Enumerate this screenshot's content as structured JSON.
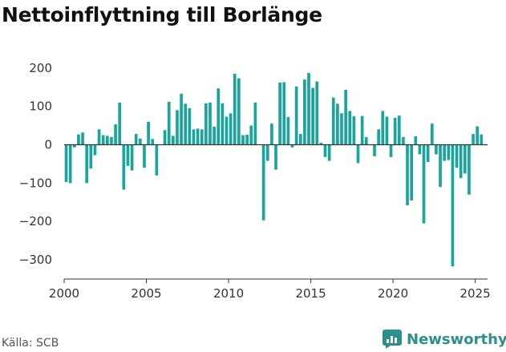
{
  "title": "Nettoinflyttning till Borlänge",
  "source": "Källa: SCB",
  "brand": "Newsworthy",
  "colors": {
    "bar": "#1aa59c",
    "brand": "#2c8f8a",
    "axis": "#333333"
  },
  "chart_data": {
    "type": "bar",
    "title": "Nettoinflyttning till Borlänge",
    "xlabel": "",
    "ylabel": "",
    "xlim": [
      2000,
      2025.75
    ],
    "ylim": [
      -350,
      210
    ],
    "x_ticks": [
      2000,
      2005,
      2010,
      2015,
      2020,
      2025
    ],
    "y_ticks": [
      200,
      100,
      0,
      -100,
      -200,
      -300
    ],
    "y_tick_labels": [
      "200",
      "100",
      "0",
      "−100",
      "−200",
      "−300"
    ],
    "grid": false,
    "legend": "none",
    "x": [
      2000.0,
      2000.25,
      2000.5,
      2000.75,
      2001.0,
      2001.25,
      2001.5,
      2001.75,
      2002.0,
      2002.25,
      2002.5,
      2002.75,
      2003.0,
      2003.25,
      2003.5,
      2003.75,
      2004.0,
      2004.25,
      2004.5,
      2004.75,
      2005.0,
      2005.25,
      2005.5,
      2005.75,
      2006.0,
      2006.25,
      2006.5,
      2006.75,
      2007.0,
      2007.25,
      2007.5,
      2007.75,
      2008.0,
      2008.25,
      2008.5,
      2008.75,
      2009.0,
      2009.25,
      2009.5,
      2009.75,
      2010.0,
      2010.25,
      2010.5,
      2010.75,
      2011.0,
      2011.25,
      2011.5,
      2011.75,
      2012.0,
      2012.25,
      2012.5,
      2012.75,
      2013.0,
      2013.25,
      2013.5,
      2013.75,
      2014.0,
      2014.25,
      2014.5,
      2014.75,
      2015.0,
      2015.25,
      2015.5,
      2015.75,
      2016.0,
      2016.25,
      2016.5,
      2016.75,
      2017.0,
      2017.25,
      2017.5,
      2017.75,
      2018.0,
      2018.25,
      2018.5,
      2018.75,
      2019.0,
      2019.25,
      2019.5,
      2019.75,
      2020.0,
      2020.25,
      2020.5,
      2020.75,
      2021.0,
      2021.25,
      2021.5,
      2021.75,
      2022.0,
      2022.25,
      2022.5,
      2022.75,
      2023.0,
      2023.25,
      2023.5,
      2023.75,
      2024.0,
      2024.25,
      2024.5,
      2024.75,
      2025.0,
      2025.25,
      2025.5
    ],
    "values": [
      -97,
      -100,
      -7,
      27,
      32,
      -100,
      -62,
      -27,
      40,
      25,
      23,
      20,
      53,
      110,
      -117,
      -55,
      -67,
      28,
      16,
      -60,
      60,
      15,
      -80,
      0,
      38,
      112,
      23,
      90,
      133,
      107,
      95,
      40,
      42,
      40,
      108,
      110,
      47,
      147,
      108,
      73,
      82,
      185,
      173,
      25,
      26,
      50,
      110,
      0,
      -197,
      -42,
      55,
      -65,
      162,
      163,
      72,
      -7,
      152,
      28,
      170,
      187,
      148,
      165,
      5,
      -32,
      -42,
      123,
      107,
      82,
      143,
      88,
      74,
      -48,
      75,
      20,
      0,
      -30,
      40,
      88,
      73,
      -32,
      70,
      76,
      20,
      -158,
      -145,
      22,
      -25,
      -205,
      -45,
      55,
      -25,
      -110,
      -42,
      -40,
      -317,
      -60,
      -87,
      -75,
      -130,
      28,
      48,
      27,
      0
    ]
  }
}
